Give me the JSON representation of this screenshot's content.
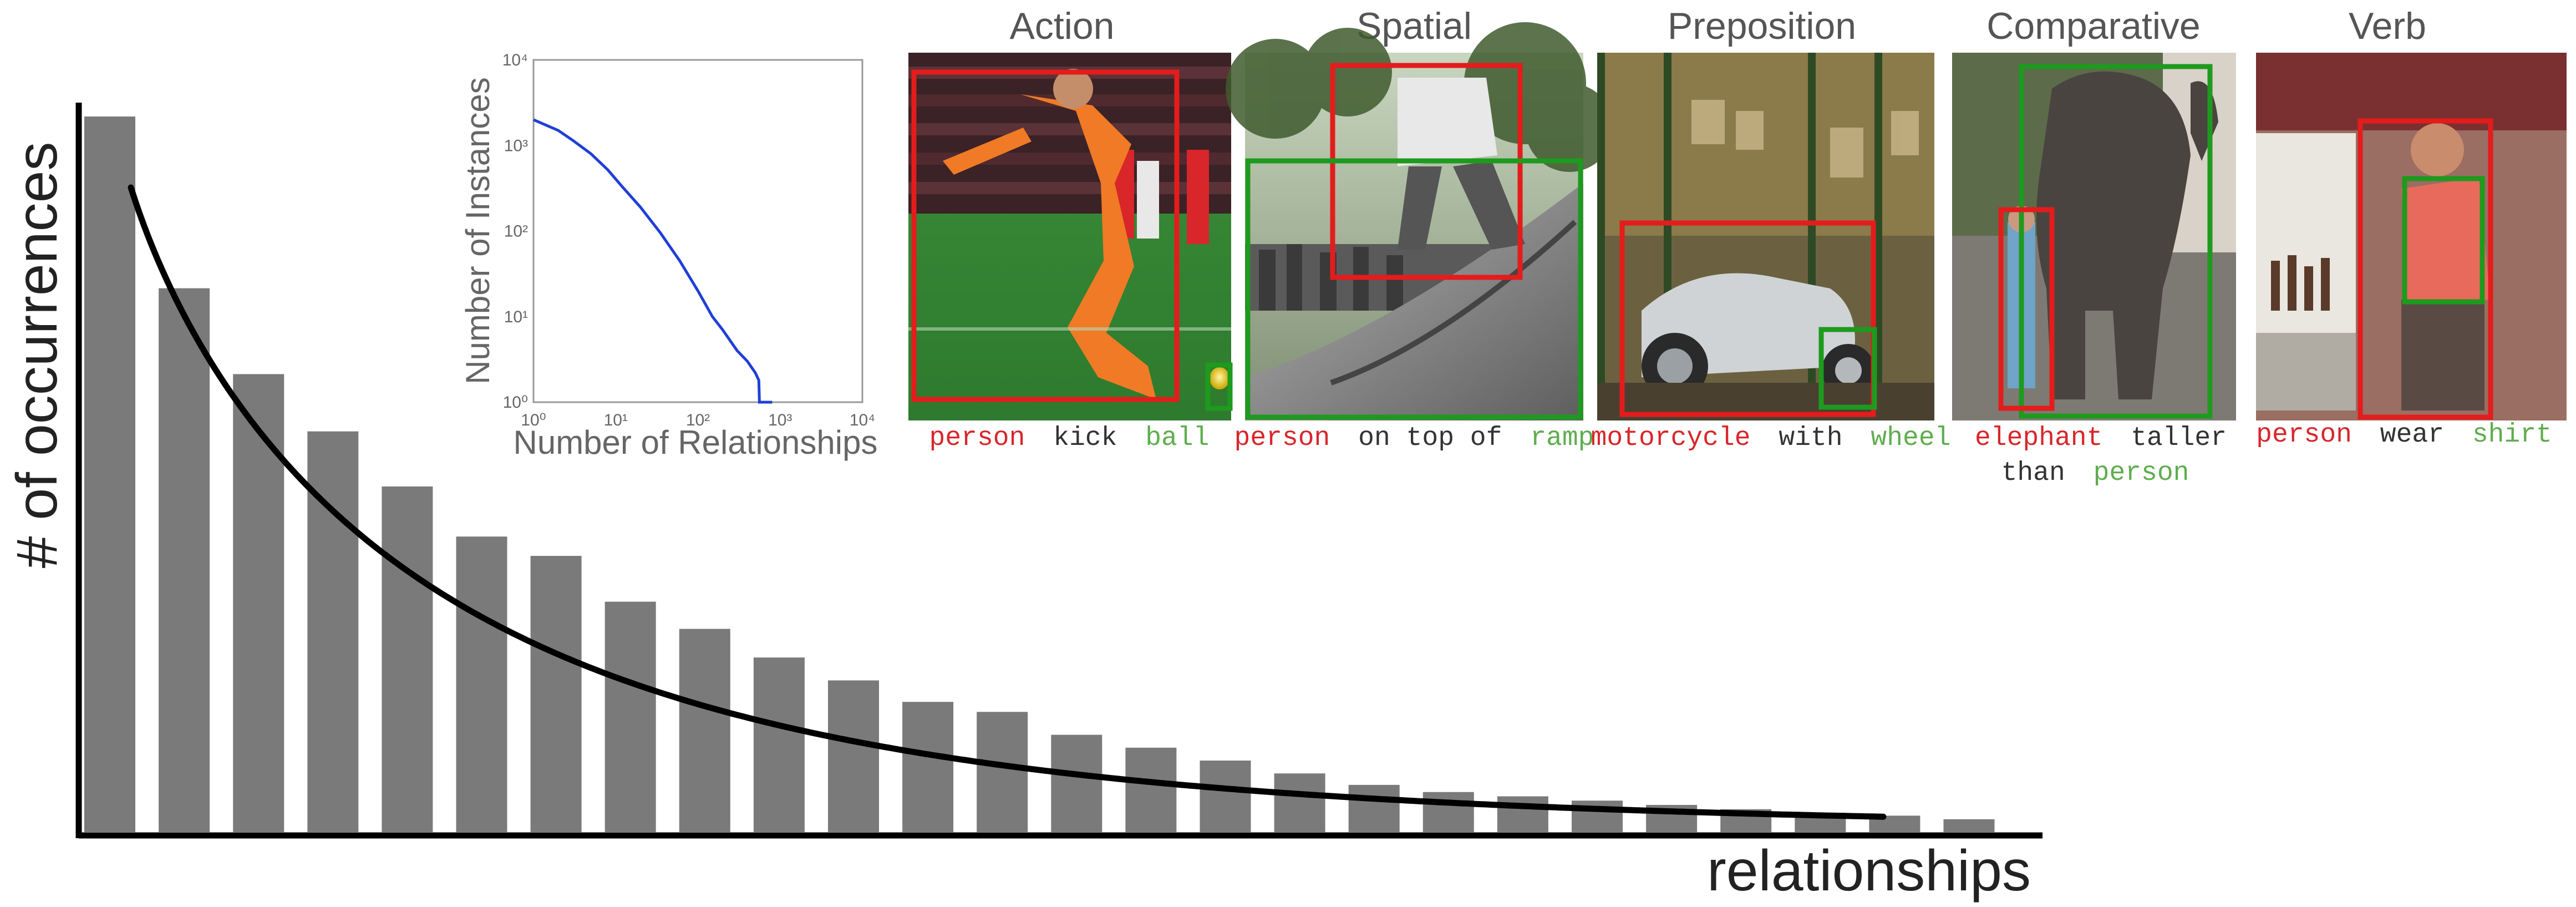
{
  "charts": [
    {
      "type": "bar",
      "ylabel": "# of occurrences",
      "xlabel": "relationships",
      "bar_values": [
        1000,
        760,
        640,
        560,
        483,
        413,
        386,
        322,
        284,
        244,
        212,
        182,
        168,
        136,
        118,
        100,
        82,
        66,
        56,
        50,
        44,
        38,
        32,
        27,
        23,
        18
      ],
      "curve_type": "decay",
      "values_normalized_to": 1000
    },
    {
      "type": "line",
      "scale": "log-log",
      "xlabel": "Number of Relationships",
      "ylabel": "Number of Instances",
      "xlim": [
        1,
        10000
      ],
      "ylim": [
        1,
        10000
      ],
      "x_ticks": [
        "10⁰",
        "10¹",
        "10²",
        "10³",
        "10⁴"
      ],
      "y_ticks": [
        "10⁰",
        "10¹",
        "10²",
        "10³",
        "10⁴"
      ],
      "line_color": "#1f3fd8",
      "series": [
        {
          "x": [
            1,
            2,
            3,
            5,
            8,
            12,
            20,
            35,
            60,
            100,
            150,
            200,
            300,
            400,
            500,
            550,
            560,
            600,
            700,
            800
          ],
          "y": [
            2000,
            1500,
            1150,
            800,
            520,
            330,
            190,
            95,
            45,
            20,
            10,
            7,
            4,
            3,
            2.2,
            1.8,
            1,
            1,
            1,
            1
          ]
        }
      ]
    }
  ],
  "panels": [
    {
      "title": "Action",
      "subject": "person",
      "predicate": "kick",
      "object": "ball",
      "scene": "soccer",
      "caption_lines": 1
    },
    {
      "title": "Spatial",
      "subject": "person",
      "predicate": "on top of",
      "object": "ramp",
      "scene": "skate",
      "caption_lines": 1
    },
    {
      "title": "Preposition",
      "subject": "motorcycle",
      "predicate": "with",
      "object": "wheel",
      "scene": "shop",
      "caption_lines": 1
    },
    {
      "title": "Comparative",
      "subject": "elephant",
      "predicate": "taller",
      "predicate_line2": "than",
      "object": "person",
      "scene": "elephant",
      "caption_lines": 2
    },
    {
      "title": "Verb",
      "subject": "person",
      "predicate": "wear",
      "object": "shirt",
      "scene": "kitchen",
      "caption_lines": 1
    }
  ],
  "colors": {
    "bar": "#7a7a7a",
    "axis": "#000000",
    "subject": "#d8262b",
    "object": "#5fad4e",
    "predicate": "#333333",
    "subject_box": "#e41c1c",
    "object_box": "#1e9a1e",
    "title": "#555555"
  }
}
